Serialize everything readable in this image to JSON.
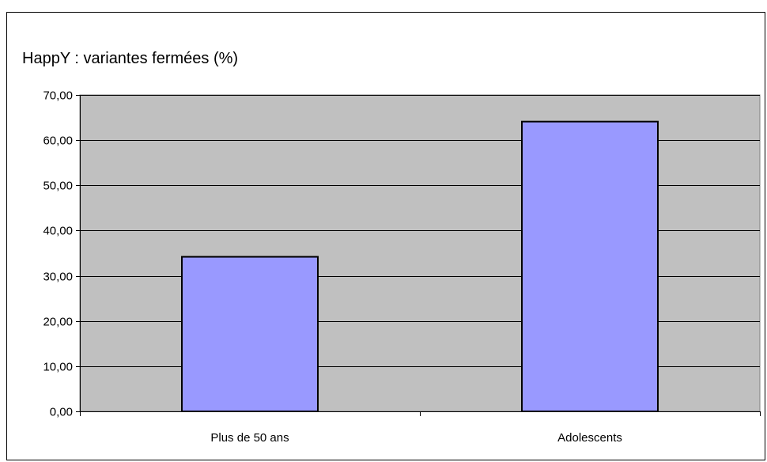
{
  "chart_data": {
    "type": "bar",
    "title": "HappY : variantes fermées (%)",
    "categories": [
      "Plus de 50 ans",
      "Adolescents"
    ],
    "values": [
      34.2,
      64.1
    ],
    "ylim": [
      0,
      70
    ],
    "yticks": [
      0,
      10,
      20,
      30,
      40,
      50,
      60,
      70
    ],
    "ytick_labels": [
      "0,00",
      "10,00",
      "20,00",
      "30,00",
      "40,00",
      "50,00",
      "60,00",
      "70,00"
    ],
    "xlabel": "",
    "ylabel": "",
    "grid": true,
    "legend": "none",
    "colors": {
      "bar_fill": "#9999ff",
      "bar_stroke": "#000000",
      "plot_background": "#c0c0c0",
      "gridline": "#000000"
    }
  }
}
